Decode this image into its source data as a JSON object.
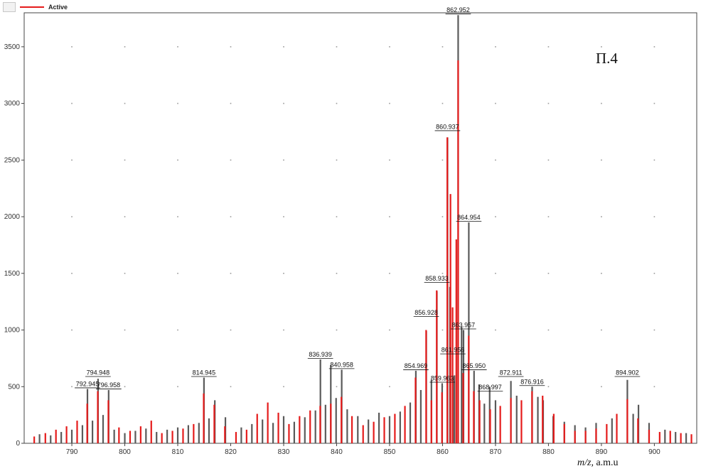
{
  "legend": {
    "label": "Active",
    "color": "#e51b1b"
  },
  "panel_label": "П.4",
  "x_unit": {
    "mz": "m/z,",
    "unit": "a.m.u"
  },
  "chart_data": {
    "type": "bar",
    "title": "",
    "xlabel": "m/z, a.m.u",
    "ylabel": "",
    "xlim": [
      781,
      908
    ],
    "ylim": [
      0,
      3800
    ],
    "x_ticks": [
      790,
      800,
      810,
      820,
      830,
      840,
      850,
      860,
      870,
      880,
      890,
      900
    ],
    "y_ticks": [
      0,
      500,
      1000,
      1500,
      2000,
      2500,
      3000,
      3500
    ],
    "grid": "dotted points",
    "legend_position": "top-left",
    "series": [
      {
        "name": "Active",
        "color": "#e51b1b",
        "points": [
          [
            782.9,
            60
          ],
          [
            785.0,
            90
          ],
          [
            787.0,
            120
          ],
          [
            789.0,
            150
          ],
          [
            791.0,
            200
          ],
          [
            792.9,
            350
          ],
          [
            794.9,
            460
          ],
          [
            796.9,
            380
          ],
          [
            798.9,
            140
          ],
          [
            801.0,
            110
          ],
          [
            803.0,
            150
          ],
          [
            805.0,
            200
          ],
          [
            807.0,
            90
          ],
          [
            809.0,
            110
          ],
          [
            811.0,
            130
          ],
          [
            813.0,
            170
          ],
          [
            814.9,
            440
          ],
          [
            816.9,
            340
          ],
          [
            818.9,
            150
          ],
          [
            821.0,
            100
          ],
          [
            823.0,
            120
          ],
          [
            825.0,
            260
          ],
          [
            827.0,
            360
          ],
          [
            829.0,
            270
          ],
          [
            831.0,
            170
          ],
          [
            833.0,
            240
          ],
          [
            835.0,
            290
          ],
          [
            836.9,
            330
          ],
          [
            838.9,
            350
          ],
          [
            840.9,
            410
          ],
          [
            842.9,
            240
          ],
          [
            845.0,
            160
          ],
          [
            847.0,
            190
          ],
          [
            849.0,
            230
          ],
          [
            851.0,
            260
          ],
          [
            852.9,
            330
          ],
          [
            854.9,
            580
          ],
          [
            856.9,
            1000
          ],
          [
            857.9,
            380
          ],
          [
            858.9,
            1350
          ],
          [
            859.9,
            450
          ],
          [
            860.9,
            2700
          ],
          [
            861.5,
            2200
          ],
          [
            861.9,
            1200
          ],
          [
            862.6,
            1800
          ],
          [
            862.95,
            3380
          ],
          [
            863.9,
            620
          ],
          [
            864.95,
            950
          ],
          [
            865.9,
            460
          ],
          [
            867.0,
            380
          ],
          [
            869.0,
            300
          ],
          [
            870.9,
            330
          ],
          [
            872.9,
            400
          ],
          [
            874.9,
            380
          ],
          [
            876.9,
            460
          ],
          [
            878.9,
            420
          ],
          [
            881.0,
            260
          ],
          [
            883.0,
            170
          ],
          [
            885.0,
            110
          ],
          [
            887.0,
            110
          ],
          [
            889.0,
            130
          ],
          [
            891.0,
            170
          ],
          [
            892.9,
            260
          ],
          [
            894.9,
            390
          ],
          [
            896.9,
            220
          ],
          [
            899.0,
            120
          ],
          [
            901.0,
            100
          ],
          [
            903.0,
            110
          ],
          [
            905.0,
            90
          ],
          [
            907.0,
            80
          ]
        ]
      },
      {
        "name": "",
        "color": "#5a5a5a",
        "points": [
          [
            783.9,
            80
          ],
          [
            786.0,
            70
          ],
          [
            788.0,
            100
          ],
          [
            790.0,
            120
          ],
          [
            792.0,
            160
          ],
          [
            792.95,
            480
          ],
          [
            793.9,
            200
          ],
          [
            794.95,
            570
          ],
          [
            795.9,
            250
          ],
          [
            796.95,
            470
          ],
          [
            798.0,
            120
          ],
          [
            800.0,
            90
          ],
          [
            802.0,
            110
          ],
          [
            804.0,
            130
          ],
          [
            806.0,
            100
          ],
          [
            808.0,
            120
          ],
          [
            810.0,
            140
          ],
          [
            812.0,
            160
          ],
          [
            814.0,
            180
          ],
          [
            814.95,
            580
          ],
          [
            815.9,
            220
          ],
          [
            817.0,
            380
          ],
          [
            819.0,
            230
          ],
          [
            822.0,
            140
          ],
          [
            824.0,
            170
          ],
          [
            826.0,
            210
          ],
          [
            828.0,
            180
          ],
          [
            830.0,
            240
          ],
          [
            832.0,
            190
          ],
          [
            834.0,
            230
          ],
          [
            836.0,
            290
          ],
          [
            836.94,
            740
          ],
          [
            837.9,
            340
          ],
          [
            838.9,
            690
          ],
          [
            839.9,
            400
          ],
          [
            840.96,
            650
          ],
          [
            842.0,
            300
          ],
          [
            844.0,
            240
          ],
          [
            846.0,
            210
          ],
          [
            848.0,
            270
          ],
          [
            850.0,
            240
          ],
          [
            852.0,
            280
          ],
          [
            853.9,
            360
          ],
          [
            854.96,
            640
          ],
          [
            855.9,
            470
          ],
          [
            856.93,
            990
          ],
          [
            857.9,
            560
          ],
          [
            858.93,
            1340
          ],
          [
            859.93,
            530
          ],
          [
            860.94,
            2700
          ],
          [
            861.4,
            1380
          ],
          [
            861.96,
            580
          ],
          [
            862.25,
            600
          ],
          [
            862.95,
            3780
          ],
          [
            863.6,
            1030
          ],
          [
            863.96,
            1000
          ],
          [
            864.96,
            1950
          ],
          [
            865.95,
            640
          ],
          [
            866.9,
            520
          ],
          [
            867.9,
            350
          ],
          [
            868.9,
            500
          ],
          [
            870.0,
            380
          ],
          [
            872.91,
            550
          ],
          [
            874.0,
            420
          ],
          [
            876.92,
            500
          ],
          [
            878.0,
            410
          ],
          [
            879.0,
            380
          ],
          [
            880.9,
            240
          ],
          [
            883.0,
            190
          ],
          [
            885.0,
            160
          ],
          [
            887.0,
            140
          ],
          [
            889.0,
            180
          ],
          [
            892.0,
            220
          ],
          [
            894.9,
            560
          ],
          [
            896.0,
            260
          ],
          [
            897.0,
            340
          ],
          [
            899.0,
            180
          ],
          [
            902.0,
            120
          ],
          [
            904.0,
            100
          ],
          [
            906.0,
            90
          ]
        ]
      }
    ],
    "peak_labels": [
      {
        "text": "792.945",
        "x": 792.945,
        "y": 480
      },
      {
        "text": "794.948",
        "x": 794.948,
        "y": 580
      },
      {
        "text": "796.958",
        "x": 796.958,
        "y": 470
      },
      {
        "text": "814.945",
        "x": 814.945,
        "y": 580
      },
      {
        "text": "836.939",
        "x": 836.939,
        "y": 740
      },
      {
        "text": "840.958",
        "x": 840.958,
        "y": 650
      },
      {
        "text": "854.969",
        "x": 854.969,
        "y": 640
      },
      {
        "text": "856.928",
        "x": 856.928,
        "y": 1110
      },
      {
        "text": "858.933",
        "x": 858.933,
        "y": 1410
      },
      {
        "text": "860.937",
        "x": 860.937,
        "y": 2750
      },
      {
        "text": "859.963",
        "x": 859.963,
        "y": 530
      },
      {
        "text": "861.956",
        "x": 861.956,
        "y": 780
      },
      {
        "text": "862.952",
        "x": 862.952,
        "y": 3780
      },
      {
        "text": "863.957",
        "x": 863.957,
        "y": 1000
      },
      {
        "text": "864.954",
        "x": 864.954,
        "y": 1950
      },
      {
        "text": "865.950",
        "x": 865.95,
        "y": 640
      },
      {
        "text": "868.997",
        "x": 868.997,
        "y": 450
      },
      {
        "text": "872.911",
        "x": 872.911,
        "y": 580
      },
      {
        "text": "876.916",
        "x": 876.916,
        "y": 500
      },
      {
        "text": "894.902",
        "x": 894.902,
        "y": 580
      }
    ]
  }
}
